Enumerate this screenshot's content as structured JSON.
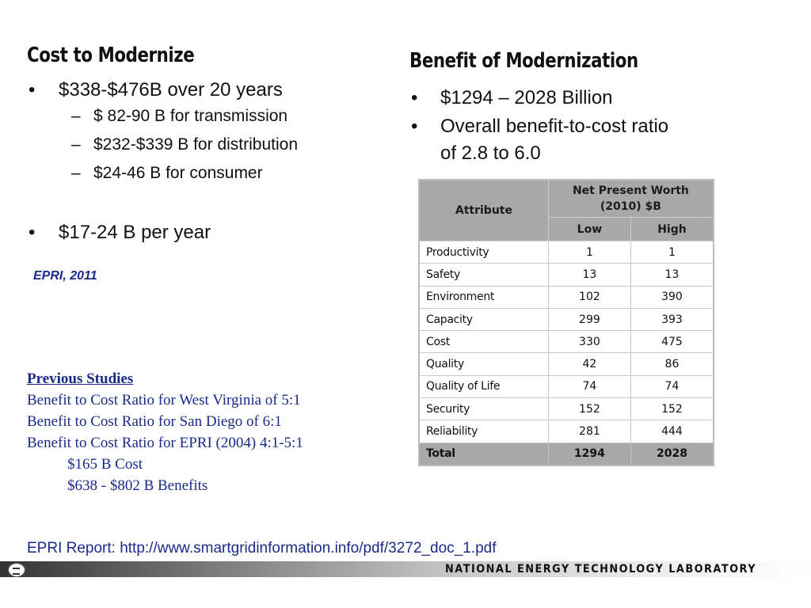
{
  "left": {
    "heading": "Cost to Modernize",
    "bullet1": "$338-$476B over 20 years",
    "sub_items": [
      "$ 82-90 B for transmission",
      "$232-$339 B for distribution",
      "$24-46 B for consumer"
    ],
    "bullet2": "$17-24 B per year",
    "citation": "EPRI, 2011"
  },
  "right": {
    "heading": "Benefit of Modernization",
    "bullet1": "$1294 – 2028 Billion",
    "bullet2_line1": "Overall benefit-to-cost ratio",
    "bullet2_line2": "of 2.8 to 6.0"
  },
  "table": {
    "header_attribute": "Attribute",
    "header_npw_line1": "Net Present Worth",
    "header_npw_line2": "(2010) $B",
    "header_low": "Low",
    "header_high": "High",
    "rows": [
      {
        "attribute": "Productivity",
        "low": "1",
        "high": "1"
      },
      {
        "attribute": "Safety",
        "low": "13",
        "high": "13"
      },
      {
        "attribute": "Environment",
        "low": "102",
        "high": "390"
      },
      {
        "attribute": "Capacity",
        "low": "299",
        "high": "393"
      },
      {
        "attribute": "Cost",
        "low": "330",
        "high": "475"
      },
      {
        "attribute": "Quality",
        "low": "42",
        "high": "86"
      },
      {
        "attribute": "Quality of Life",
        "low": "74",
        "high": "74"
      },
      {
        "attribute": "Security",
        "low": "152",
        "high": "152"
      },
      {
        "attribute": "Reliability",
        "low": "281",
        "high": "444"
      }
    ],
    "total": {
      "attribute": "Total",
      "low": "1294",
      "high": "2028"
    }
  },
  "studies": {
    "title": "Previous Studies",
    "lines": [
      "Benefit to Cost Ratio for West Virginia of 5:1",
      "Benefit to Cost Ratio for San Diego of 6:1",
      "Benefit to Cost Ratio for EPRI (2004) 4:1-5:1"
    ],
    "cost": "$165 B Cost",
    "benefits": "$638 - $802 B Benefits"
  },
  "report_link": "EPRI Report: http://www.smartgridinformation.info/pdf/3272_doc_1.pdf",
  "footer": {
    "lab_name": "NATIONAL ENERGY TECHNOLOGY LABORATORY"
  },
  "colors": {
    "link_blue": "#1a2a8a",
    "table_header_gray": "#a8a8a8"
  }
}
